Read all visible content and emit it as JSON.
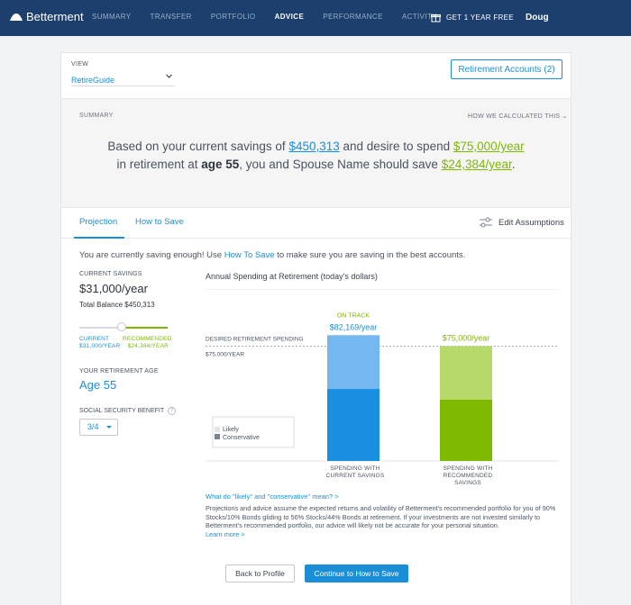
{
  "nav": {
    "brand": "Betterment",
    "items": [
      "SUMMARY",
      "TRANSFER",
      "PORTFOLIO",
      "ADVICE",
      "PERFORMANCE",
      "ACTIVITY"
    ],
    "active_index": 3,
    "promo": "GET 1 YEAR FREE",
    "user": "Doug"
  },
  "view": {
    "label": "VIEW",
    "selected": "RetireGuide",
    "accounts_button": "Retirement Accounts (2)"
  },
  "summary": {
    "label": "SUMMARY",
    "how_calculated": "HOW WE CALCULATED THIS",
    "sentence": {
      "p1": "Based on your current savings of ",
      "savings": "$450,313",
      "p2": " and desire to spend ",
      "spend": "$75,000/year",
      "p3": "in retirement at ",
      "age": "age 55",
      "p4": ", you and Spouse Name should save ",
      "save": "$24,384/year",
      "p5": "."
    }
  },
  "tabs": {
    "projection": "Projection",
    "how_to_save": "How to Save",
    "edit": "Edit Assumptions"
  },
  "notice": {
    "p1": "You are currently saving enough! Use ",
    "link": "How To Save",
    "p2": " to make sure you are saving in the best accounts."
  },
  "inputs": {
    "current_savings_label": "CURRENT SAVINGS",
    "current_savings": "$31,000/year",
    "total_balance": "Total Balance $450,313",
    "slider_current_label": "CURRENT",
    "slider_current_value": "$31,000/YEAR",
    "slider_recommended_label": "RECOMMENDED",
    "slider_recommended_value": "$24,384/YEAR",
    "retirement_age_label": "YOUR RETIREMENT AGE",
    "retirement_age": "Age 55",
    "ss_label": "SOCIAL SECURITY BENEFIT",
    "ss_value": "3/4"
  },
  "chart_data": {
    "type": "bar",
    "title": "Annual Spending at Retirement (today's dollars)",
    "categories": [
      "SPENDING WITH CURRENT SAVINGS",
      "SPENDING WITH RECOMMENDED SAVINGS"
    ],
    "series": [
      {
        "name": "Likely",
        "values": [
          82169,
          75000
        ]
      },
      {
        "name": "Conservative",
        "values": [
          47000,
          40000
        ]
      }
    ],
    "bar_labels": [
      "$82,169/year",
      "$75,000/year"
    ],
    "status": "ON TRACK",
    "reference_line": {
      "label": "DESIRED RETIREMENT SPENDING",
      "value_label": "$75,000/YEAR",
      "value": 75000
    },
    "ylim": [
      0,
      100000
    ],
    "colors": {
      "current_likely": "#74b8f2",
      "current_conservative": "#1a8fe0",
      "recommended_likely": "#b6d96a",
      "recommended_conservative": "#7fba00",
      "status": "#7fb800"
    },
    "legend": [
      "Likely",
      "Conservative"
    ]
  },
  "footer": {
    "faq": "What do \"likely\" and \"conservative\" mean? >",
    "disclaimer": "Projections and advice assume the expected returns and volatility of Betterment's recommended portfolio for you of 90% Stocks/10% Bonds gliding to 56% Stocks/44% Bonds at retirement. If your investments are not invested similarly to Betterment's recommended portfolio, our advice will likely not be accurate for your personal situation.",
    "learn_more": "Learn more >",
    "back_button": "Back to Profile",
    "continue_button": "Continue to How to Save"
  }
}
